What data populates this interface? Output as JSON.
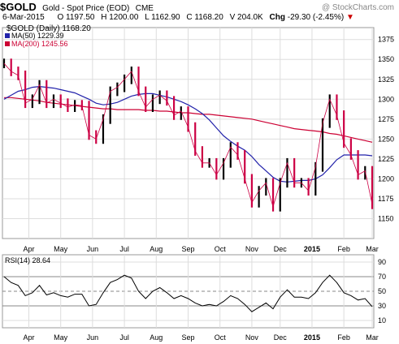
{
  "header": {
    "symbol": "$GOLD",
    "name": "Gold - Spot Price (EOD)",
    "exchange": "CME",
    "watermark": "@ StockCharts.com",
    "date": "6-Mar-2015",
    "open_label": "O",
    "open": "1197.50",
    "high_label": "H",
    "high": "1200.00",
    "low_label": "L",
    "low": "1162.90",
    "close_label": "C",
    "close": "1168.20",
    "volume_label": "V",
    "volume": "204.0K",
    "chg_label": "Chg",
    "chg": "-29.30 (-2.45%)"
  },
  "legend": {
    "main": "$GOLD (Daily) 1168.20",
    "ma50": "MA(50) 1229.39",
    "ma200": "MA(200) 1245.56"
  },
  "rsi_panel": {
    "label": "RSI(14) 28.64"
  },
  "colors": {
    "price": "#cc0044",
    "price_up": "#000000",
    "ma50": "#2222aa",
    "ma200": "#cc0033",
    "rsi": "#000000",
    "grid": "#dddddd",
    "down_arrow": "#cc0000"
  },
  "chart_data": [
    {
      "type": "line",
      "subtype": "ohlc-bars",
      "title": "$GOLD (Daily) 1168.20",
      "ylim": [
        1125,
        1390
      ],
      "y_ticks": [
        1150,
        1175,
        1200,
        1225,
        1250,
        1275,
        1300,
        1325,
        1350,
        1375
      ],
      "x_tick_labels": [
        "Apr",
        "May",
        "Jun",
        "Jul",
        "Aug",
        "Sep",
        "Oct",
        "Nov",
        "Dec",
        "2015",
        "Feb",
        "Mar"
      ],
      "x": [
        "2014-03-07",
        "2014-03-14",
        "2014-03-21",
        "2014-03-28",
        "2014-04-04",
        "2014-04-11",
        "2014-04-18",
        "2014-04-25",
        "2014-05-02",
        "2014-05-09",
        "2014-05-16",
        "2014-05-23",
        "2014-05-30",
        "2014-06-06",
        "2014-06-13",
        "2014-06-20",
        "2014-06-27",
        "2014-07-04",
        "2014-07-11",
        "2014-07-18",
        "2014-07-25",
        "2014-08-01",
        "2014-08-08",
        "2014-08-15",
        "2014-08-22",
        "2014-08-29",
        "2014-09-05",
        "2014-09-12",
        "2014-09-19",
        "2014-09-26",
        "2014-10-03",
        "2014-10-10",
        "2014-10-17",
        "2014-10-24",
        "2014-10-31",
        "2014-11-07",
        "2014-11-14",
        "2014-11-21",
        "2014-11-28",
        "2014-12-05",
        "2014-12-12",
        "2014-12-19",
        "2014-12-26",
        "2015-01-02",
        "2015-01-09",
        "2015-01-16",
        "2015-01-23",
        "2015-01-30",
        "2015-02-06",
        "2015-02-13",
        "2015-02-20",
        "2015-02-27",
        "2015-03-06"
      ],
      "series": [
        {
          "name": "$GOLD",
          "values": [
            1345,
            1335,
            1330,
            1295,
            1300,
            1318,
            1295,
            1300,
            1295,
            1290,
            1293,
            1292,
            1255,
            1250,
            1275,
            1310,
            1315,
            1325,
            1335,
            1310,
            1290,
            1300,
            1305,
            1298,
            1280,
            1285,
            1265,
            1235,
            1220,
            1220,
            1205,
            1220,
            1240,
            1230,
            1200,
            1170,
            1185,
            1195,
            1165,
            1195,
            1220,
            1195,
            1195,
            1185,
            1215,
            1270,
            1300,
            1280,
            1245,
            1230,
            1205,
            1210,
            1168
          ]
        },
        {
          "name": "MA(50)",
          "values": [
            1300,
            1305,
            1310,
            1312,
            1315,
            1316,
            1315,
            1314,
            1312,
            1310,
            1308,
            1304,
            1300,
            1295,
            1293,
            1294,
            1296,
            1300,
            1304,
            1306,
            1307,
            1307,
            1305,
            1303,
            1300,
            1297,
            1293,
            1288,
            1282,
            1274,
            1264,
            1254,
            1247,
            1241,
            1236,
            1228,
            1218,
            1210,
            1202,
            1197,
            1196,
            1197,
            1198,
            1198,
            1200,
            1205,
            1214,
            1224,
            1230,
            1230,
            1230,
            1230,
            1229
          ]
        },
        {
          "name": "MA(200)",
          "values": [
            1302,
            1302,
            1301,
            1300,
            1299,
            1298,
            1296,
            1295,
            1294,
            1293,
            1292,
            1291,
            1290,
            1289,
            1288,
            1288,
            1287,
            1287,
            1287,
            1287,
            1286,
            1286,
            1285,
            1285,
            1284,
            1283,
            1283,
            1282,
            1281,
            1281,
            1280,
            1279,
            1278,
            1277,
            1276,
            1275,
            1273,
            1271,
            1269,
            1267,
            1265,
            1263,
            1262,
            1261,
            1260,
            1259,
            1257,
            1256,
            1254,
            1252,
            1250,
            1248,
            1246
          ]
        }
      ]
    },
    {
      "type": "line",
      "title": "RSI(14) 28.64",
      "ylim": [
        0,
        100
      ],
      "y_ticks": [
        10,
        30,
        50,
        70,
        90
      ],
      "reference_lines": [
        30,
        50,
        70
      ],
      "x_tick_labels": [
        "Apr",
        "May",
        "Jun",
        "Jul",
        "Aug",
        "Sep",
        "Oct",
        "Nov",
        "Dec",
        "2015",
        "Feb",
        "Mar"
      ],
      "series": [
        {
          "name": "RSI(14)",
          "values": [
            70,
            62,
            58,
            44,
            48,
            58,
            45,
            48,
            44,
            42,
            46,
            46,
            30,
            32,
            48,
            62,
            66,
            72,
            68,
            50,
            40,
            50,
            55,
            48,
            40,
            44,
            40,
            34,
            30,
            32,
            30,
            36,
            44,
            40,
            32,
            22,
            28,
            34,
            26,
            42,
            52,
            42,
            42,
            40,
            48,
            62,
            72,
            62,
            48,
            44,
            38,
            40,
            29
          ]
        }
      ]
    }
  ]
}
